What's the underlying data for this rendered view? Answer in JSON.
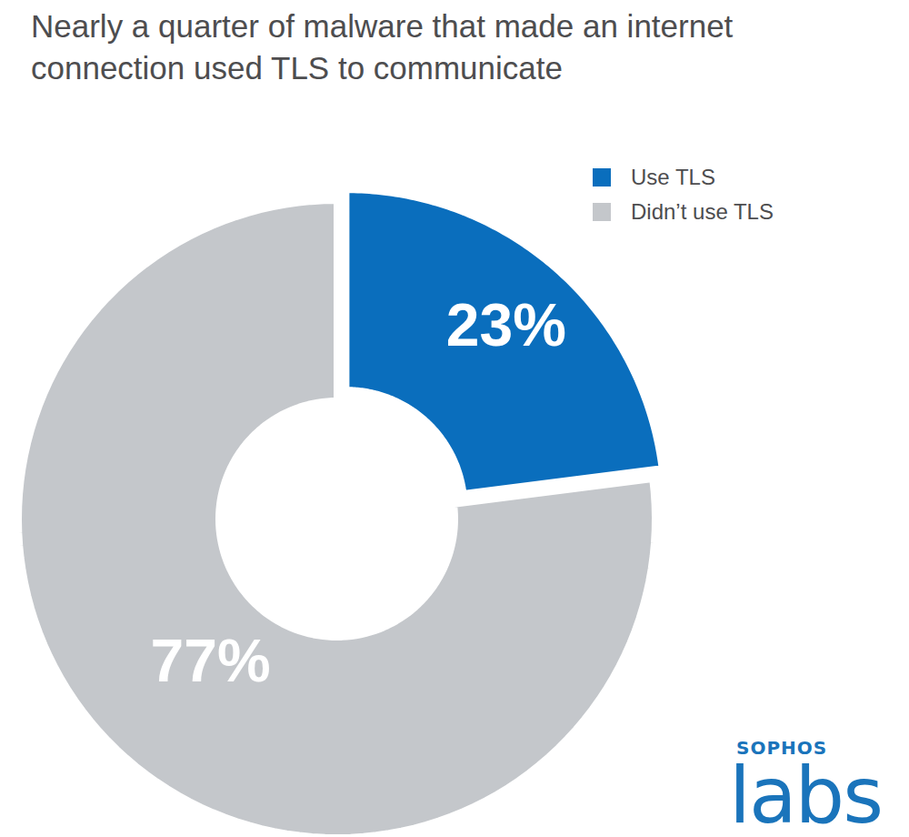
{
  "chart_data": {
    "type": "pie",
    "title": "Nearly a quarter of malware that made an internet connection used TLS to communicate",
    "categories": [
      "Use TLS",
      "Didn’t use TLS"
    ],
    "values": [
      23,
      77
    ],
    "value_labels": [
      "23%",
      "77%"
    ],
    "colors": [
      "#0a6ebd",
      "#c4c7cb"
    ],
    "data_labels": true,
    "legend": "top-right",
    "annotations": [
      "SOPHOS",
      "labs"
    ]
  }
}
